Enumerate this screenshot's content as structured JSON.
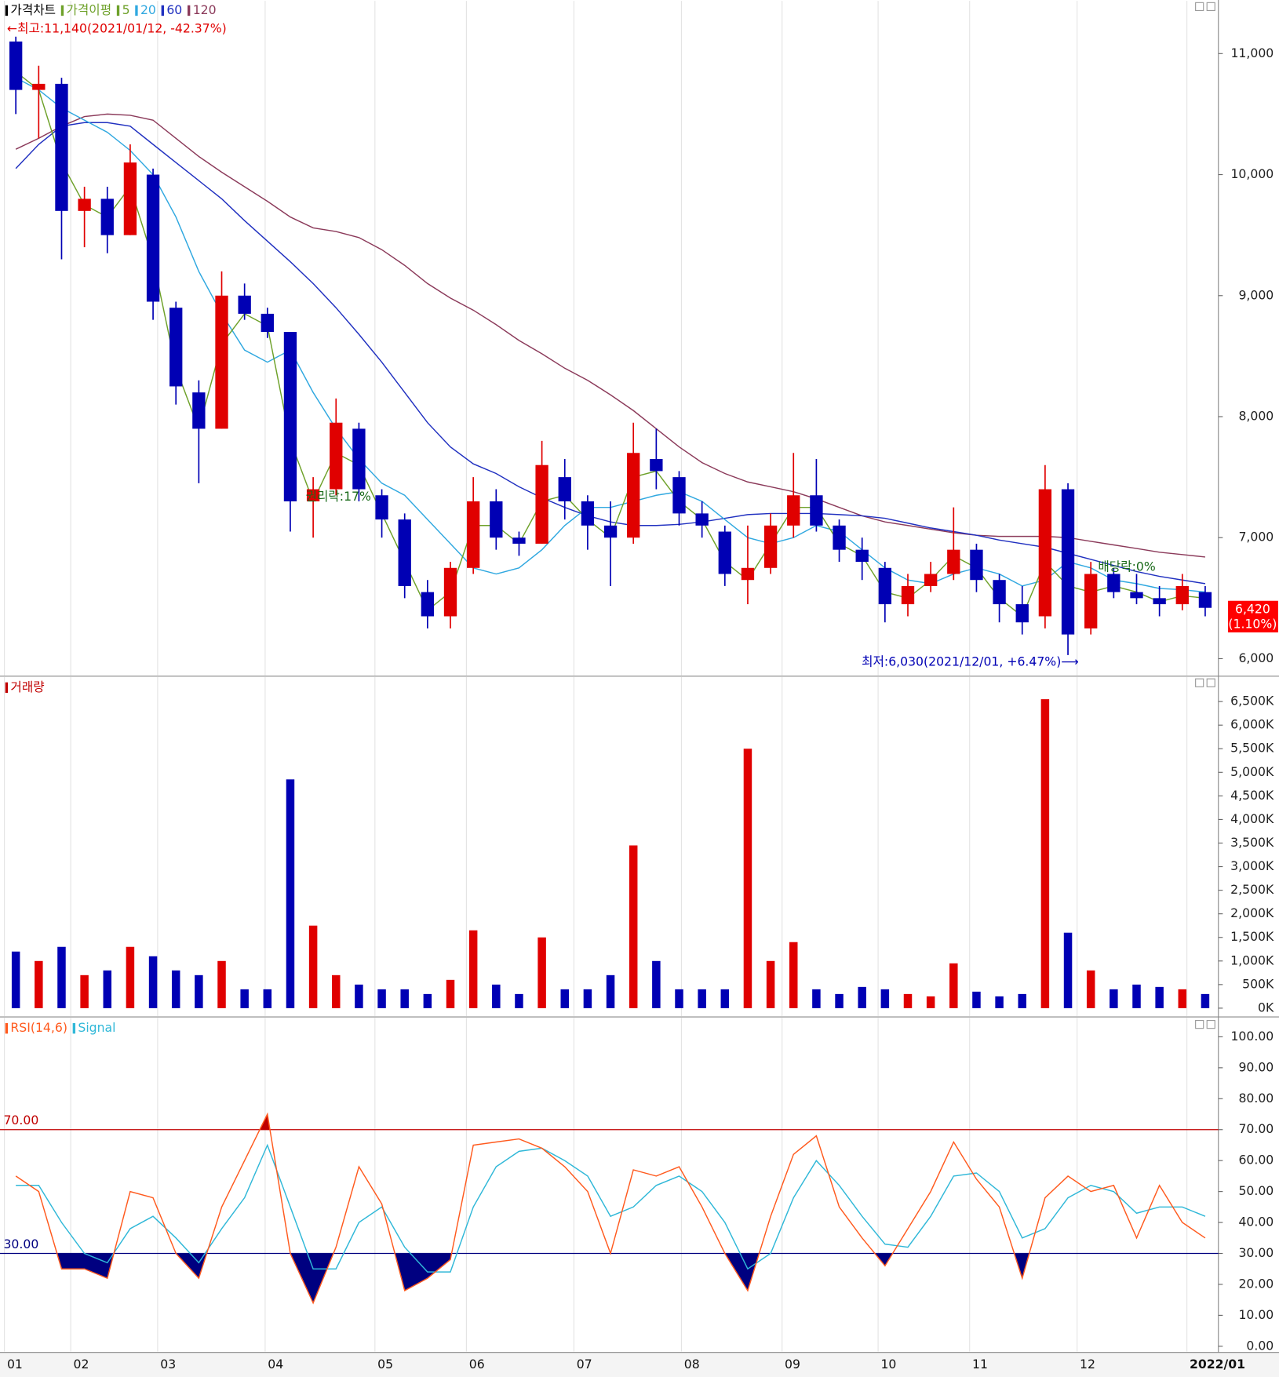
{
  "chart_data": [
    {
      "type": "candlestick",
      "title": "가격차트",
      "ma_title": "가격이평",
      "open": [
        11100,
        10700,
        10750,
        9700,
        9800,
        9500,
        10000,
        8900,
        8200,
        7900,
        9000,
        8850,
        8700,
        7300,
        7400,
        7900,
        7350,
        7150,
        6550,
        6350,
        6750,
        7300,
        7000,
        6950,
        7500,
        7300,
        7100,
        7000,
        7650,
        7500,
        7200,
        7050,
        6650,
        6750,
        7100,
        7350,
        7100,
        6900,
        6750,
        6450,
        6600,
        6700,
        6900,
        6650,
        6450,
        6350,
        7400,
        6250,
        6700,
        6550,
        6500,
        6450,
        6550
      ],
      "high": [
        11140,
        10900,
        10800,
        9900,
        9900,
        10250,
        10050,
        8950,
        8300,
        9200,
        9100,
        8900,
        8700,
        7500,
        8150,
        7950,
        7400,
        7200,
        6650,
        6800,
        7500,
        7400,
        7050,
        7800,
        7650,
        7350,
        7300,
        7950,
        7900,
        7550,
        7300,
        7100,
        7100,
        7200,
        7700,
        7650,
        7150,
        7000,
        6800,
        6700,
        6800,
        7250,
        6950,
        6700,
        6600,
        7600,
        7450,
        6800,
        6750,
        6700,
        6600,
        6700,
        6600
      ],
      "low": [
        10500,
        10300,
        9300,
        9400,
        9350,
        9500,
        8800,
        8100,
        7450,
        7900,
        8800,
        8650,
        7050,
        7000,
        7350,
        7300,
        7000,
        6500,
        6250,
        6250,
        6700,
        6900,
        6850,
        6950,
        7150,
        6900,
        6600,
        6950,
        7400,
        7100,
        7000,
        6600,
        6450,
        6700,
        7000,
        7050,
        6800,
        6650,
        6300,
        6350,
        6550,
        6650,
        6550,
        6300,
        6200,
        6250,
        6030,
        6200,
        6500,
        6450,
        6350,
        6400,
        6350
      ],
      "close": [
        10700,
        10750,
        9700,
        9800,
        9500,
        10100,
        8950,
        8250,
        7900,
        9000,
        8850,
        8700,
        7300,
        7400,
        7950,
        7400,
        7150,
        6600,
        6350,
        6750,
        7300,
        7000,
        6950,
        7600,
        7300,
        7100,
        7000,
        7700,
        7550,
        7200,
        7100,
        6700,
        6750,
        7100,
        7350,
        7100,
        6900,
        6800,
        6450,
        6600,
        6700,
        6900,
        6650,
        6450,
        6300,
        7400,
        6200,
        6700,
        6550,
        6500,
        6450,
        6600,
        6420
      ],
      "up_color": "#e00000",
      "down_color": "#0000b4",
      "series": [
        {
          "name": "5",
          "color": "#6ea12a",
          "values": [
            10850,
            10700,
            10100,
            9750,
            9650,
            9900,
            9300,
            8400,
            7900,
            8600,
            8850,
            8750,
            7800,
            7300,
            7700,
            7600,
            7200,
            6800,
            6400,
            6550,
            7100,
            7100,
            6950,
            7300,
            7350,
            7150,
            7000,
            7500,
            7550,
            7300,
            7150,
            6800,
            6650,
            6950,
            7250,
            7250,
            6950,
            6850,
            6550,
            6500,
            6650,
            6850,
            6750,
            6500,
            6350,
            6800,
            6600,
            6550,
            6600,
            6550,
            6470,
            6520,
            6500
          ]
        },
        {
          "name": "20",
          "color": "#30a8e0",
          "values": [
            10800,
            10700,
            10550,
            10450,
            10350,
            10200,
            10000,
            9650,
            9200,
            8850,
            8550,
            8450,
            8550,
            8200,
            7900,
            7650,
            7450,
            7350,
            7150,
            6950,
            6750,
            6700,
            6750,
            6900,
            7100,
            7250,
            7250,
            7300,
            7350,
            7380,
            7300,
            7150,
            7000,
            6950,
            7000,
            7100,
            7050,
            6900,
            6750,
            6650,
            6620,
            6700,
            6750,
            6700,
            6600,
            6650,
            6800,
            6750,
            6650,
            6620,
            6580,
            6570,
            6550
          ]
        },
        {
          "name": "60",
          "color": "#2030c0",
          "values": [
            10050,
            10250,
            10400,
            10430,
            10430,
            10400,
            10250,
            10100,
            9950,
            9800,
            9620,
            9450,
            9280,
            9100,
            8900,
            8680,
            8450,
            8200,
            7950,
            7750,
            7610,
            7530,
            7420,
            7330,
            7250,
            7180,
            7130,
            7100,
            7100,
            7110,
            7130,
            7160,
            7190,
            7200,
            7200,
            7200,
            7190,
            7180,
            7160,
            7120,
            7080,
            7050,
            7020,
            6980,
            6950,
            6920,
            6870,
            6820,
            6770,
            6720,
            6680,
            6650,
            6620
          ]
        },
        {
          "name": "120",
          "color": "#8b3a5a",
          "values": [
            10210,
            10300,
            10400,
            10480,
            10500,
            10490,
            10450,
            10300,
            10150,
            10020,
            9900,
            9780,
            9650,
            9560,
            9530,
            9480,
            9380,
            9250,
            9100,
            8980,
            8880,
            8760,
            8630,
            8520,
            8400,
            8300,
            8180,
            8050,
            7900,
            7750,
            7620,
            7530,
            7460,
            7420,
            7380,
            7320,
            7250,
            7180,
            7130,
            7100,
            7070,
            7040,
            7020,
            7010,
            7010,
            7010,
            7000,
            6970,
            6940,
            6910,
            6880,
            6860,
            6840
          ]
        }
      ],
      "ylim": [
        5900,
        11300
      ],
      "yticks": [
        {
          "value": 6000,
          "label": "6,000"
        },
        {
          "value": 7000,
          "label": "7,000"
        },
        {
          "value": 8000,
          "label": "8,000"
        },
        {
          "value": 9000,
          "label": "9,000"
        },
        {
          "value": 10000,
          "label": "10,000"
        },
        {
          "value": 11000,
          "label": "11,000"
        }
      ],
      "annotations": [
        {
          "text": "←최고:11,140(2021/01/12, -42.37%)",
          "color": "#e00000"
        },
        {
          "text": "최저:6,030(2021/12/01, +6.47%)⟶",
          "color": "#0000b4"
        },
        {
          "text": "권리락:17%",
          "color": "#1a6a1a"
        },
        {
          "text": "배당락:0%",
          "color": "#1a6a1a"
        }
      ],
      "price_tag": [
        "6,420",
        "(1.10%)"
      ],
      "price_tag_color": "#ff0000"
    },
    {
      "type": "bar",
      "title": "거래량",
      "title_color": "#c00000",
      "values": [
        1200,
        1000,
        1300,
        700,
        800,
        1300,
        1100,
        800,
        700,
        1000,
        400,
        400,
        4850,
        1750,
        700,
        500,
        400,
        400,
        300,
        600,
        1650,
        500,
        300,
        1500,
        400,
        400,
        700,
        3450,
        1000,
        400,
        400,
        400,
        5500,
        1000,
        1400,
        400,
        300,
        450,
        400,
        300,
        250,
        950,
        350,
        250,
        300,
        6550,
        1600,
        800,
        400,
        500,
        450,
        400,
        300
      ],
      "ylim": [
        0,
        7000
      ],
      "yticks": [
        {
          "value": 0,
          "label": "0K"
        },
        {
          "value": 500,
          "label": "500K"
        },
        {
          "value": 1000,
          "label": "1,000K"
        },
        {
          "value": 1500,
          "label": "1,500K"
        },
        {
          "value": 2000,
          "label": "2,000K"
        },
        {
          "value": 2500,
          "label": "2,500K"
        },
        {
          "value": 3000,
          "label": "3,000K"
        },
        {
          "value": 3500,
          "label": "3,500K"
        },
        {
          "value": 4000,
          "label": "4,000K"
        },
        {
          "value": 4500,
          "label": "4,500K"
        },
        {
          "value": 5000,
          "label": "5,000K"
        },
        {
          "value": 5500,
          "label": "5,500K"
        },
        {
          "value": 6000,
          "label": "6,000K"
        },
        {
          "value": 6500,
          "label": "6,500K"
        }
      ]
    },
    {
      "type": "line",
      "series": [
        {
          "name": "RSI(14,6)",
          "color": "#ff5a1e",
          "values": [
            55,
            50,
            25,
            25,
            22,
            50,
            48,
            30,
            22,
            45,
            60,
            75,
            30,
            14,
            32,
            58,
            46,
            18,
            22,
            28,
            65,
            66,
            67,
            64,
            58,
            50,
            30,
            57,
            55,
            58,
            45,
            30,
            18,
            42,
            62,
            68,
            45,
            35,
            26,
            38,
            50,
            66,
            54,
            45,
            22,
            48,
            55,
            50,
            52,
            35,
            52,
            40,
            35
          ]
        },
        {
          "name": "Signal",
          "color": "#30b8d8",
          "values": [
            52,
            52,
            40,
            30,
            27,
            38,
            42,
            35,
            27,
            38,
            48,
            65,
            45,
            25,
            25,
            40,
            45,
            32,
            24,
            24,
            45,
            58,
            63,
            64,
            60,
            55,
            42,
            45,
            52,
            55,
            50,
            40,
            25,
            30,
            48,
            60,
            52,
            42,
            33,
            32,
            42,
            55,
            56,
            50,
            35,
            38,
            48,
            52,
            50,
            43,
            45,
            45,
            42
          ]
        }
      ],
      "reference_lines": [
        {
          "value": 70,
          "label": "70.00",
          "color": "#c00000",
          "fill": "#c00000"
        },
        {
          "value": 30,
          "label": "30.00",
          "color": "#000080",
          "fill": "#000080"
        }
      ],
      "ylim": [
        0,
        105
      ],
      "yticks": [
        {
          "value": 0,
          "label": "0.00"
        },
        {
          "value": 10,
          "label": "10.00"
        },
        {
          "value": 20,
          "label": "20.00"
        },
        {
          "value": 30,
          "label": "30.00"
        },
        {
          "value": 40,
          "label": "40.00"
        },
        {
          "value": 50,
          "label": "50.00"
        },
        {
          "value": 60,
          "label": "60.00"
        },
        {
          "value": 70,
          "label": "70.00"
        },
        {
          "value": 80,
          "label": "80.00"
        },
        {
          "value": 90,
          "label": "90.00"
        },
        {
          "value": 100,
          "label": "100.00"
        }
      ],
      "xlim": [
        0,
        53
      ],
      "xticks": [
        {
          "value": 0,
          "label": "01"
        },
        {
          "value": 2.9,
          "label": "02"
        },
        {
          "value": 6.7,
          "label": "03"
        },
        {
          "value": 11.4,
          "label": "04"
        },
        {
          "value": 16.2,
          "label": "05"
        },
        {
          "value": 20.2,
          "label": "06"
        },
        {
          "value": 24.9,
          "label": "07"
        },
        {
          "value": 29.6,
          "label": "08"
        },
        {
          "value": 34.0,
          "label": "09"
        },
        {
          "value": 38.2,
          "label": "10"
        },
        {
          "value": 42.2,
          "label": "11"
        },
        {
          "value": 46.9,
          "label": "12"
        },
        {
          "value": 51.7,
          "label": "2022/01"
        }
      ]
    }
  ]
}
